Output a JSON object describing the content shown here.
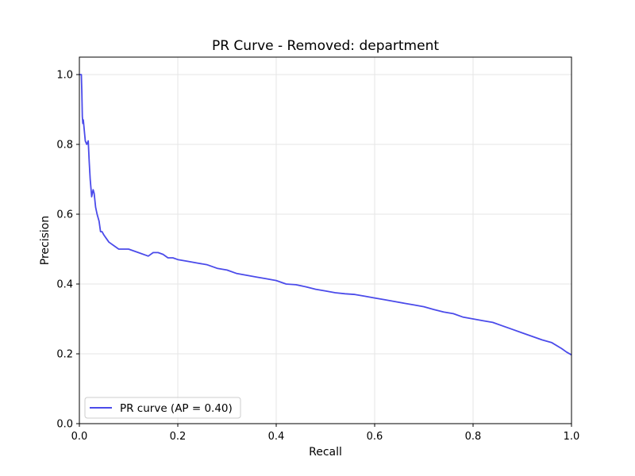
{
  "chart_data": {
    "type": "line",
    "title": "PR Curve - Removed: department",
    "xlabel": "Recall",
    "ylabel": "Precision",
    "xlim": [
      0.0,
      1.0
    ],
    "ylim": [
      0.0,
      1.05
    ],
    "xticks": [
      "0.0",
      "0.2",
      "0.4",
      "0.6",
      "0.8",
      "1.0"
    ],
    "yticks": [
      "0.0",
      "0.2",
      "0.4",
      "0.6",
      "0.8",
      "1.0"
    ],
    "grid": true,
    "legend_position": "lower-left",
    "series": [
      {
        "name": "PR curve (AP = 0.40)",
        "color": "#4b4bea",
        "x": [
          0.0,
          0.003,
          0.004,
          0.005,
          0.006,
          0.007,
          0.008,
          0.01,
          0.012,
          0.015,
          0.018,
          0.02,
          0.022,
          0.025,
          0.028,
          0.03,
          0.033,
          0.036,
          0.04,
          0.043,
          0.046,
          0.05,
          0.055,
          0.06,
          0.07,
          0.08,
          0.09,
          0.1,
          0.12,
          0.14,
          0.15,
          0.16,
          0.17,
          0.18,
          0.19,
          0.2,
          0.22,
          0.24,
          0.26,
          0.28,
          0.3,
          0.32,
          0.34,
          0.36,
          0.38,
          0.4,
          0.42,
          0.44,
          0.46,
          0.48,
          0.5,
          0.52,
          0.54,
          0.56,
          0.58,
          0.6,
          0.62,
          0.64,
          0.66,
          0.68,
          0.7,
          0.72,
          0.74,
          0.76,
          0.78,
          0.8,
          0.82,
          0.84,
          0.86,
          0.88,
          0.9,
          0.92,
          0.94,
          0.96,
          0.98,
          0.99,
          1.0
        ],
        "y": [
          1.0,
          1.0,
          1.0,
          0.95,
          0.88,
          0.86,
          0.87,
          0.84,
          0.81,
          0.8,
          0.81,
          0.75,
          0.7,
          0.65,
          0.67,
          0.66,
          0.62,
          0.6,
          0.58,
          0.55,
          0.55,
          0.54,
          0.53,
          0.52,
          0.51,
          0.5,
          0.5,
          0.5,
          0.49,
          0.48,
          0.49,
          0.49,
          0.485,
          0.475,
          0.475,
          0.47,
          0.465,
          0.46,
          0.455,
          0.445,
          0.44,
          0.43,
          0.425,
          0.42,
          0.415,
          0.41,
          0.4,
          0.398,
          0.392,
          0.385,
          0.38,
          0.375,
          0.372,
          0.37,
          0.365,
          0.36,
          0.355,
          0.35,
          0.345,
          0.34,
          0.335,
          0.327,
          0.32,
          0.315,
          0.305,
          0.3,
          0.295,
          0.29,
          0.28,
          0.27,
          0.26,
          0.25,
          0.24,
          0.232,
          0.215,
          0.205,
          0.197
        ]
      }
    ]
  }
}
